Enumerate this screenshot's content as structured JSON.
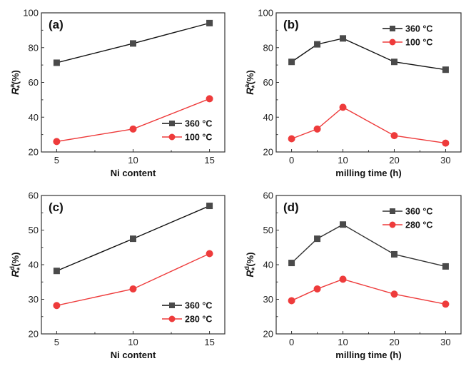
{
  "chart_data": [
    {
      "panel": "(a)",
      "type": "line",
      "xlabel": "Ni content",
      "ylabel": {
        "base": "R",
        "sup": "a",
        "sub": "*",
        "unit": "(%)"
      },
      "x": [
        5,
        10,
        15
      ],
      "xticks": [
        5,
        10,
        15
      ],
      "xlim": [
        4,
        16
      ],
      "ylim": [
        20,
        100
      ],
      "yticks": [
        20,
        40,
        60,
        80,
        100
      ],
      "legend": "right-bottom",
      "series": [
        {
          "name": "360 °C",
          "marker": "square",
          "color": "#4a4a4a",
          "line_color": "#111111",
          "values": [
            71.3,
            82.4,
            94.1
          ]
        },
        {
          "name": "100 °C",
          "marker": "circle",
          "color": "#ee3b3b",
          "line_color": "#ee3b3b",
          "values": [
            26.0,
            33.2,
            50.6
          ]
        }
      ]
    },
    {
      "panel": "(b)",
      "type": "line",
      "xlabel": "milling time (h)",
      "ylabel": {
        "base": "R",
        "sup": "a",
        "sub": "*",
        "unit": "(%)"
      },
      "x": [
        0,
        5,
        10,
        20,
        30
      ],
      "xticks": [
        0,
        10,
        20,
        30
      ],
      "xlim": [
        -3,
        33
      ],
      "ylim": [
        20,
        100
      ],
      "yticks": [
        20,
        40,
        60,
        80,
        100
      ],
      "legend": "top-right",
      "series": [
        {
          "name": "360 °C",
          "marker": "square",
          "color": "#4a4a4a",
          "line_color": "#111111",
          "values": [
            71.8,
            81.9,
            85.3,
            71.8,
            67.3
          ]
        },
        {
          "name": "100 °C",
          "marker": "circle",
          "color": "#ee3b3b",
          "line_color": "#ee3b3b",
          "values": [
            27.6,
            33.2,
            45.7,
            29.4,
            25.1
          ]
        }
      ]
    },
    {
      "panel": "(c)",
      "type": "line",
      "xlabel": "Ni content",
      "ylabel": {
        "base": "R",
        "sup": "d",
        "sub": "*",
        "unit": "(%)"
      },
      "x": [
        5,
        10,
        15
      ],
      "xticks": [
        5,
        10,
        15
      ],
      "xlim": [
        4,
        16
      ],
      "ylim": [
        20,
        60
      ],
      "yticks": [
        20,
        30,
        40,
        50,
        60
      ],
      "legend": "right-bottom",
      "series": [
        {
          "name": "360 °C",
          "marker": "square",
          "color": "#4a4a4a",
          "line_color": "#111111",
          "values": [
            38.2,
            47.5,
            57.0
          ]
        },
        {
          "name": "280 °C",
          "marker": "circle",
          "color": "#ee3b3b",
          "line_color": "#ee3b3b",
          "values": [
            28.2,
            33.0,
            43.2
          ]
        }
      ]
    },
    {
      "panel": "(d)",
      "type": "line",
      "xlabel": "milling time (h)",
      "ylabel": {
        "base": "R",
        "sup": "d",
        "sub": "*",
        "unit": "(%)"
      },
      "x": [
        0,
        5,
        10,
        20,
        30
      ],
      "xticks": [
        0,
        10,
        20,
        30
      ],
      "xlim": [
        -3,
        33
      ],
      "ylim": [
        20,
        60
      ],
      "yticks": [
        20,
        30,
        40,
        50,
        60
      ],
      "legend": "top-right",
      "series": [
        {
          "name": "360 °C",
          "marker": "square",
          "color": "#4a4a4a",
          "line_color": "#333333",
          "values": [
            40.5,
            47.5,
            51.6,
            43.0,
            39.5
          ]
        },
        {
          "name": "280 °C",
          "marker": "circle",
          "color": "#ee3b3b",
          "line_color": "#ee3b3b",
          "values": [
            29.6,
            33.0,
            35.8,
            31.5,
            28.6
          ]
        }
      ]
    }
  ]
}
